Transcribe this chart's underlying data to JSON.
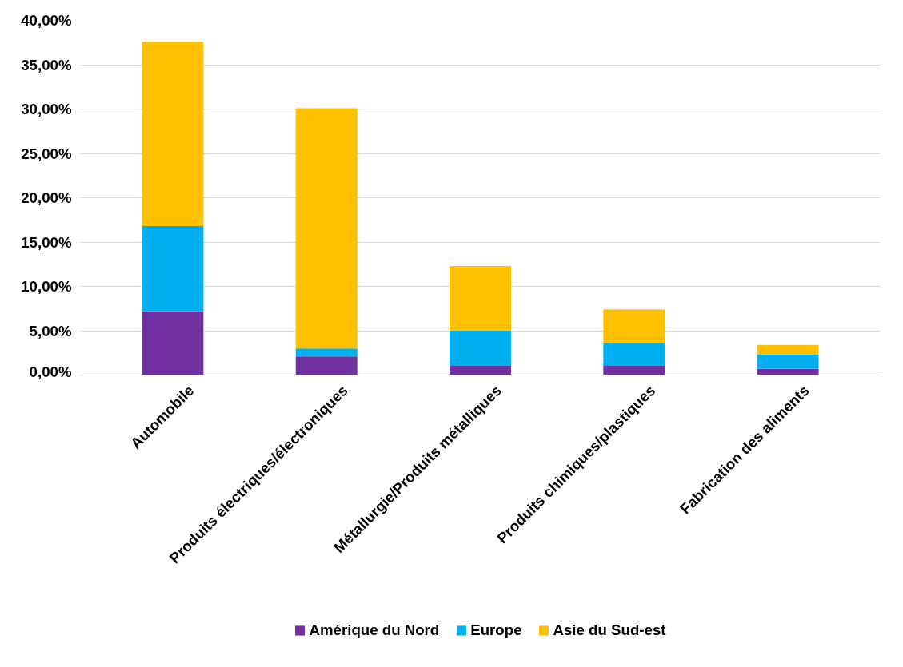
{
  "chart_data": {
    "type": "bar",
    "stacked": true,
    "categories": [
      "Automobile",
      "Produits électriques/électroniques",
      "Métallurgie/Produits métalliques",
      "Produits chimiques/plastiques",
      "Fabrication des aliments"
    ],
    "series": [
      {
        "name": "Amérique du Nord",
        "color": "#7030a0",
        "values": [
          7.2,
          2.1,
          1.1,
          1.1,
          0.7
        ]
      },
      {
        "name": "Europe",
        "color": "#00b0f0",
        "values": [
          9.6,
          0.9,
          3.9,
          2.5,
          1.6
        ]
      },
      {
        "name": "Asie du Sud-est",
        "color": "#ffc000",
        "values": [
          20.8,
          27.1,
          7.3,
          3.8,
          1.1
        ]
      }
    ],
    "ylim": [
      0,
      40
    ],
    "yticks": [
      {
        "value": 0,
        "label": "0,00%"
      },
      {
        "value": 5,
        "label": "5,00%"
      },
      {
        "value": 10,
        "label": "10,00%"
      },
      {
        "value": 15,
        "label": "15,00%"
      },
      {
        "value": 20,
        "label": "20,00%"
      },
      {
        "value": 25,
        "label": "25,00%"
      },
      {
        "value": 30,
        "label": "30,00%"
      },
      {
        "value": 35,
        "label": "35,00%"
      },
      {
        "value": 40,
        "label": "40,00%"
      }
    ],
    "grid": "y",
    "legend": "bottom"
  }
}
